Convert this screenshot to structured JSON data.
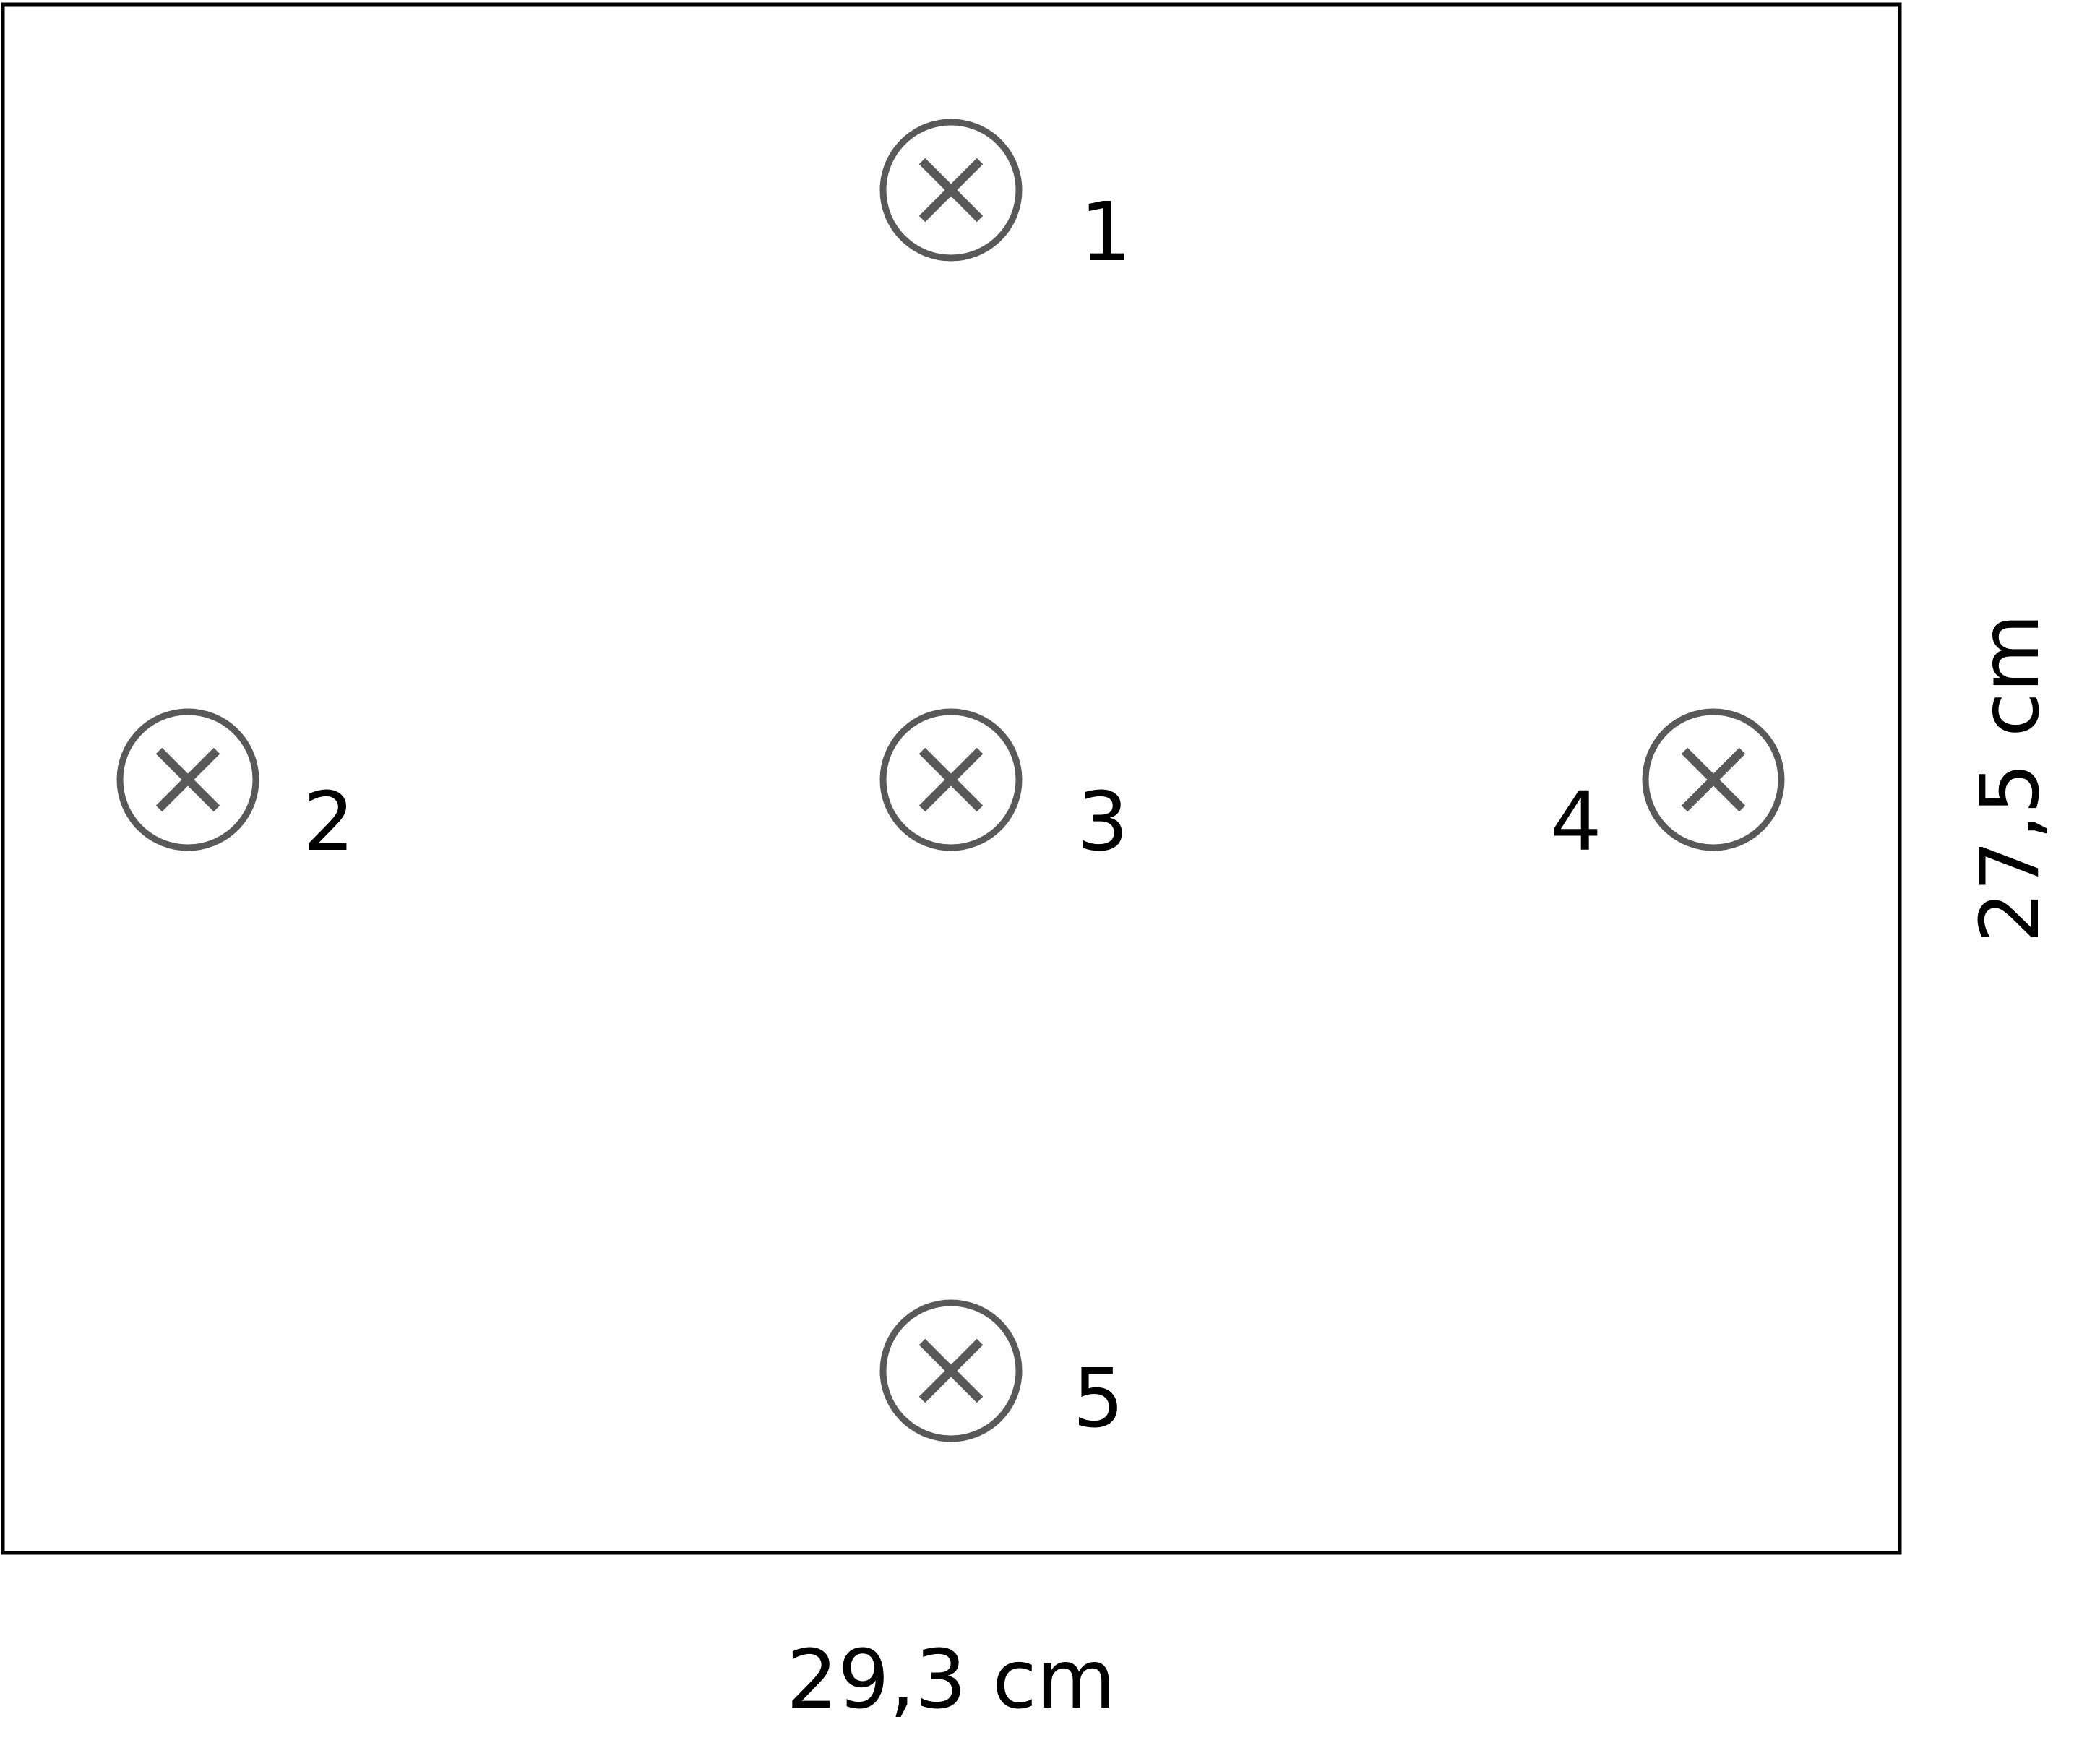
{
  "figure": {
    "width_label": "29,3 cm",
    "height_label": "27,5 cm"
  },
  "markers": [
    {
      "label": "1",
      "icon": "circled-x-icon"
    },
    {
      "label": "2",
      "icon": "circled-x-icon"
    },
    {
      "label": "3",
      "icon": "circled-x-icon"
    },
    {
      "label": "4",
      "icon": "circled-x-icon"
    },
    {
      "label": "5",
      "icon": "circled-x-icon"
    }
  ]
}
